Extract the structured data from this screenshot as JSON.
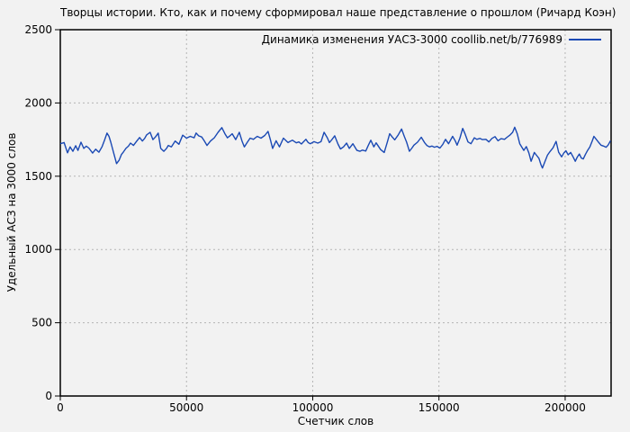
{
  "colors": {
    "background": "#f2f2f2",
    "line": "#1a49b4",
    "grid": "#b5b5b5",
    "axis": "#000000"
  },
  "legend": {
    "label": "Динамика изменения УАСЗ-3000 coollib.net/b/776989"
  },
  "chart_data": {
    "type": "line",
    "title": "Творцы истории. Кто, как и почему сформировал наше представление о прошлом (Ричард Коэн)",
    "xlabel": "Счетчик слов",
    "ylabel": "Удельный АСЗ на 3000 слов",
    "xlim": [
      0,
      218200
    ],
    "ylim": [
      0,
      2500
    ],
    "xticks": [
      0,
      50000,
      100000,
      150000,
      200000
    ],
    "yticks": [
      0,
      500,
      1000,
      1500,
      2000,
      2500
    ],
    "grid": true,
    "grid_style": "dashed",
    "legend_position": "top-right-inside",
    "series": [
      {
        "name": "Динамика изменения УАСЗ-3000 coollib.net/b/776989",
        "color": "#1a49b4",
        "points": [
          [
            0,
            1722
          ],
          [
            1500,
            1730
          ],
          [
            2850,
            1660
          ],
          [
            3900,
            1700
          ],
          [
            5000,
            1670
          ],
          [
            6100,
            1708
          ],
          [
            7000,
            1676
          ],
          [
            8200,
            1732
          ],
          [
            9300,
            1690
          ],
          [
            10300,
            1705
          ],
          [
            11300,
            1692
          ],
          [
            12800,
            1658
          ],
          [
            14000,
            1684
          ],
          [
            15300,
            1664
          ],
          [
            16500,
            1700
          ],
          [
            17500,
            1745
          ],
          [
            18500,
            1794
          ],
          [
            19300,
            1772
          ],
          [
            20000,
            1732
          ],
          [
            21300,
            1650
          ],
          [
            22300,
            1586
          ],
          [
            23300,
            1610
          ],
          [
            24200,
            1648
          ],
          [
            25000,
            1665
          ],
          [
            26000,
            1690
          ],
          [
            27000,
            1705
          ],
          [
            27800,
            1726
          ],
          [
            29000,
            1710
          ],
          [
            30200,
            1738
          ],
          [
            31400,
            1764
          ],
          [
            32500,
            1740
          ],
          [
            33400,
            1758
          ],
          [
            34200,
            1782
          ],
          [
            35600,
            1800
          ],
          [
            36700,
            1750
          ],
          [
            37700,
            1768
          ],
          [
            38800,
            1794
          ],
          [
            39800,
            1690
          ],
          [
            41000,
            1670
          ],
          [
            42000,
            1688
          ],
          [
            42800,
            1710
          ],
          [
            44000,
            1700
          ],
          [
            45500,
            1740
          ],
          [
            47000,
            1718
          ],
          [
            48500,
            1780
          ],
          [
            50000,
            1760
          ],
          [
            51500,
            1772
          ],
          [
            53000,
            1762
          ],
          [
            53800,
            1795
          ],
          [
            54800,
            1776
          ],
          [
            56000,
            1768
          ],
          [
            57000,
            1742
          ],
          [
            58100,
            1710
          ],
          [
            59500,
            1740
          ],
          [
            61000,
            1762
          ],
          [
            62500,
            1800
          ],
          [
            64000,
            1832
          ],
          [
            65200,
            1790
          ],
          [
            66200,
            1762
          ],
          [
            67200,
            1776
          ],
          [
            68100,
            1790
          ],
          [
            69500,
            1750
          ],
          [
            70900,
            1800
          ],
          [
            72000,
            1740
          ],
          [
            72900,
            1700
          ],
          [
            74000,
            1730
          ],
          [
            75200,
            1760
          ],
          [
            76500,
            1752
          ],
          [
            78000,
            1772
          ],
          [
            79500,
            1760
          ],
          [
            81000,
            1778
          ],
          [
            82300,
            1806
          ],
          [
            83200,
            1750
          ],
          [
            84100,
            1690
          ],
          [
            85500,
            1742
          ],
          [
            86800,
            1700
          ],
          [
            88400,
            1760
          ],
          [
            90200,
            1730
          ],
          [
            91000,
            1738
          ],
          [
            92000,
            1746
          ],
          [
            93500,
            1728
          ],
          [
            94500,
            1734
          ],
          [
            95500,
            1720
          ],
          [
            96400,
            1736
          ],
          [
            97300,
            1752
          ],
          [
            98200,
            1730
          ],
          [
            99000,
            1722
          ],
          [
            100500,
            1736
          ],
          [
            102000,
            1726
          ],
          [
            103300,
            1736
          ],
          [
            104500,
            1800
          ],
          [
            105800,
            1762
          ],
          [
            106600,
            1730
          ],
          [
            107600,
            1750
          ],
          [
            108700,
            1776
          ],
          [
            110000,
            1720
          ],
          [
            111000,
            1686
          ],
          [
            112200,
            1700
          ],
          [
            113400,
            1726
          ],
          [
            114500,
            1690
          ],
          [
            115900,
            1722
          ],
          [
            117500,
            1676
          ],
          [
            118700,
            1670
          ],
          [
            119700,
            1678
          ],
          [
            121000,
            1672
          ],
          [
            122000,
            1710
          ],
          [
            123000,
            1746
          ],
          [
            124200,
            1700
          ],
          [
            125100,
            1728
          ],
          [
            126900,
            1682
          ],
          [
            128300,
            1662
          ],
          [
            129500,
            1730
          ],
          [
            130500,
            1790
          ],
          [
            131500,
            1768
          ],
          [
            132500,
            1748
          ],
          [
            133800,
            1780
          ],
          [
            135200,
            1822
          ],
          [
            136300,
            1770
          ],
          [
            137200,
            1732
          ],
          [
            138300,
            1670
          ],
          [
            139300,
            1692
          ],
          [
            140100,
            1712
          ],
          [
            141500,
            1732
          ],
          [
            143000,
            1766
          ],
          [
            144300,
            1730
          ],
          [
            145200,
            1710
          ],
          [
            146200,
            1700
          ],
          [
            147200,
            1706
          ],
          [
            148200,
            1698
          ],
          [
            149200,
            1704
          ],
          [
            150400,
            1692
          ],
          [
            151500,
            1716
          ],
          [
            152600,
            1752
          ],
          [
            153800,
            1722
          ],
          [
            155400,
            1772
          ],
          [
            156500,
            1740
          ],
          [
            157200,
            1712
          ],
          [
            158300,
            1760
          ],
          [
            159400,
            1826
          ],
          [
            160400,
            1786
          ],
          [
            161500,
            1734
          ],
          [
            162700,
            1722
          ],
          [
            164000,
            1762
          ],
          [
            165000,
            1752
          ],
          [
            166200,
            1758
          ],
          [
            167200,
            1750
          ],
          [
            168600,
            1752
          ],
          [
            169800,
            1734
          ],
          [
            171000,
            1758
          ],
          [
            172200,
            1770
          ],
          [
            173400,
            1742
          ],
          [
            174600,
            1756
          ],
          [
            176000,
            1752
          ],
          [
            177000,
            1766
          ],
          [
            178200,
            1782
          ],
          [
            179200,
            1800
          ],
          [
            180000,
            1834
          ],
          [
            181000,
            1790
          ],
          [
            182000,
            1722
          ],
          [
            183600,
            1676
          ],
          [
            184600,
            1702
          ],
          [
            185600,
            1660
          ],
          [
            186500,
            1602
          ],
          [
            187800,
            1662
          ],
          [
            188800,
            1640
          ],
          [
            189600,
            1622
          ],
          [
            190400,
            1580
          ],
          [
            191000,
            1556
          ],
          [
            192000,
            1600
          ],
          [
            193000,
            1644
          ],
          [
            194000,
            1668
          ],
          [
            195200,
            1694
          ],
          [
            196400,
            1738
          ],
          [
            197400,
            1664
          ],
          [
            198600,
            1632
          ],
          [
            199500,
            1660
          ],
          [
            200300,
            1674
          ],
          [
            201200,
            1646
          ],
          [
            202200,
            1662
          ],
          [
            203200,
            1630
          ],
          [
            204000,
            1602
          ],
          [
            204800,
            1630
          ],
          [
            205600,
            1652
          ],
          [
            206400,
            1624
          ],
          [
            207200,
            1618
          ],
          [
            208000,
            1648
          ],
          [
            208900,
            1676
          ],
          [
            209800,
            1700
          ],
          [
            210700,
            1740
          ],
          [
            211400,
            1772
          ],
          [
            212300,
            1752
          ],
          [
            213200,
            1732
          ],
          [
            214200,
            1712
          ],
          [
            215200,
            1706
          ],
          [
            216200,
            1698
          ],
          [
            217000,
            1712
          ],
          [
            218000,
            1742
          ]
        ]
      }
    ]
  }
}
